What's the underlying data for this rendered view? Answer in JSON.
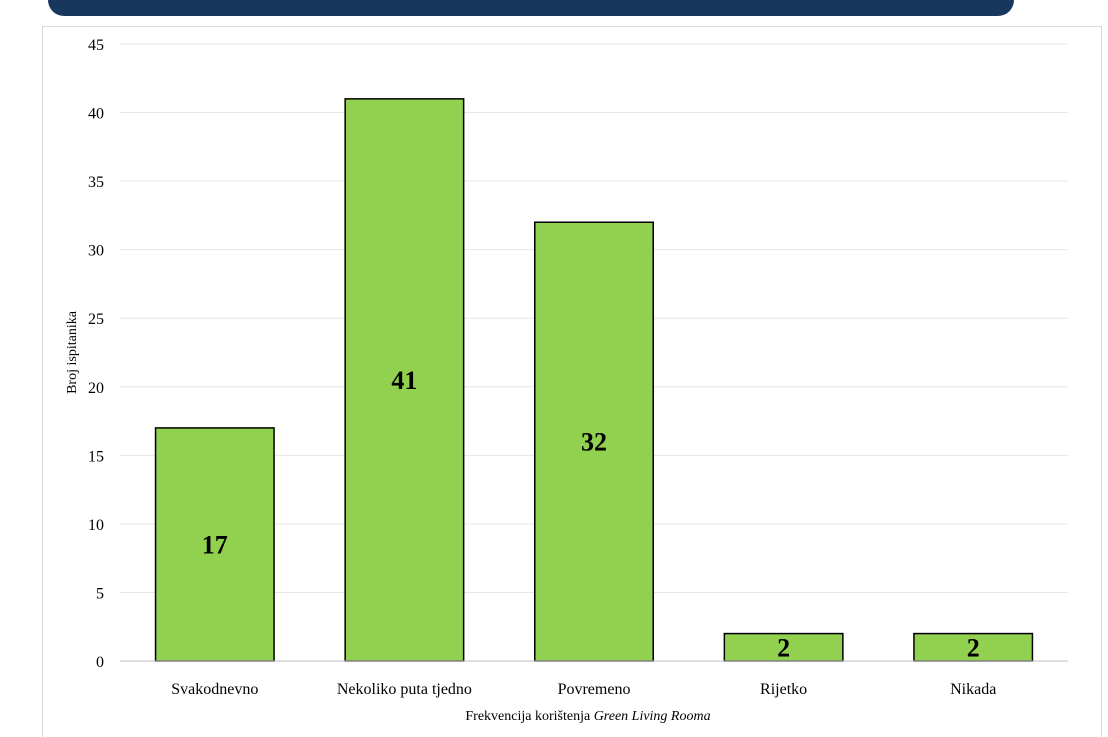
{
  "colors": {
    "banner": "#17375e",
    "bar_fill": "#92d050",
    "bar_stroke": "#000000",
    "gridline": "#e6e6e6",
    "axis_line": "#bfbfbf"
  },
  "chart_data": {
    "type": "bar",
    "title": "",
    "xlabel_prefix": "Frekvencija korištenja ",
    "xlabel_italic": "Green Living Rooma",
    "ylabel": "Broj ispitanika",
    "categories": [
      "Svakodnevno",
      "Nekoliko puta tjedno",
      "Povremeno",
      "Rijetko",
      "Nikada"
    ],
    "values": [
      17,
      41,
      32,
      2,
      2
    ],
    "data_labels": [
      "17",
      "41",
      "32",
      "2",
      "2"
    ],
    "yticks": [
      0,
      5,
      10,
      15,
      20,
      25,
      30,
      35,
      40,
      45
    ],
    "ylim": [
      0,
      45
    ],
    "grid": true,
    "legend": "none"
  }
}
